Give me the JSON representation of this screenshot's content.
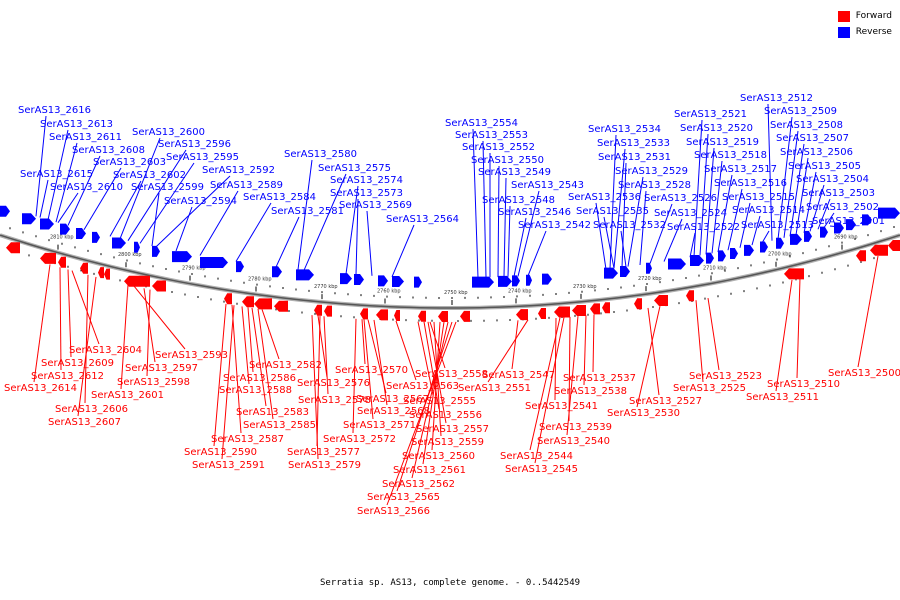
{
  "caption": "Serratia sp. AS13, complete genome. - 0..5442549",
  "legend": [
    {
      "label": "Forward",
      "color": "#ff0000"
    },
    {
      "label": "Reverse",
      "color": "#0000ff"
    }
  ],
  "colors": {
    "forward": "#ff0000",
    "reverse": "#0000ff",
    "backbone": "#808080"
  },
  "tick_labels": [
    "2810 kbp",
    "2800 kbp",
    "2790 kbp",
    "2780 kbp",
    "2770 kbp",
    "2760 kbp",
    "2750 kbp",
    "2740 kbp",
    "2730 kbp",
    "2720 kbp",
    "2710 kbp",
    "2700 kbp",
    "2690 kbp"
  ],
  "reverse_genes": [
    "SerAS13_2616",
    "SerAS13_2613",
    "SerAS13_2611",
    "SerAS13_2608",
    "SerAS13_2603",
    "SerAS13_2615",
    "SerAS13_2610",
    "SerAS13_2602",
    "SerAS13_2600",
    "SerAS13_2596",
    "SerAS13_2595",
    "SerAS13_2592",
    "SerAS13_2599",
    "SerAS13_2594",
    "SerAS13_2589",
    "SerAS13_2584",
    "SerAS13_2581",
    "SerAS13_2580",
    "SerAS13_2575",
    "SerAS13_2574",
    "SerAS13_2573",
    "SerAS13_2569",
    "SerAS13_2564",
    "SerAS13_2554",
    "SerAS13_2553",
    "SerAS13_2552",
    "SerAS13_2550",
    "SerAS13_2549",
    "SerAS13_2543",
    "SerAS13_2548",
    "SerAS13_2546",
    "SerAS13_2542",
    "SerAS13_2534",
    "SerAS13_2533",
    "SerAS13_2531",
    "SerAS13_2529",
    "SerAS13_2528",
    "SerAS13_2536",
    "SerAS13_2526",
    "SerAS13_2535",
    "SerAS13_2524",
    "SerAS13_2532",
    "SerAS13_2522",
    "SerAS13_2521",
    "SerAS13_2520",
    "SerAS13_2519",
    "SerAS13_2518",
    "SerAS13_2517",
    "SerAS13_2516",
    "SerAS13_2515",
    "SerAS13_2514",
    "SerAS13_2513",
    "SerAS13_2512",
    "SerAS13_2509",
    "SerAS13_2508",
    "SerAS13_2507",
    "SerAS13_2506",
    "SerAS13_2505",
    "SerAS13_2504",
    "SerAS13_2503",
    "SerAS13_2502",
    "SerAS13_2501"
  ],
  "forward_genes": [
    "SerAS13_2604",
    "SerAS13_2609",
    "SerAS13_2612",
    "SerAS13_2614",
    "SerAS13_2606",
    "SerAS13_2607",
    "SerAS13_2593",
    "SerAS13_2597",
    "SerAS13_2598",
    "SerAS13_2601",
    "SerAS13_2588",
    "SerAS13_2583",
    "SerAS13_2585",
    "SerAS13_2587",
    "SerAS13_2590",
    "SerAS13_2591",
    "SerAS13_2582",
    "SerAS13_2586",
    "SerAS13_2576",
    "SerAS13_2578",
    "SerAS13_2577",
    "SerAS13_2579",
    "SerAS13_2570",
    "SerAS13_2567",
    "SerAS13_2568",
    "SerAS13_2571",
    "SerAS13_2572",
    "SerAS13_2558",
    "SerAS13_2563",
    "SerAS13_2555",
    "SerAS13_2556",
    "SerAS13_2557",
    "SerAS13_2559",
    "SerAS13_2560",
    "SerAS13_2561",
    "SerAS13_2562",
    "SerAS13_2565",
    "SerAS13_2566",
    "SerAS13_2547",
    "SerAS13_2551",
    "SerAS13_2537",
    "SerAS13_2538",
    "SerAS13_2541",
    "SerAS13_2539",
    "SerAS13_2540",
    "SerAS13_2544",
    "SerAS13_2545",
    "SerAS13_2527",
    "SerAS13_2530",
    "SerAS13_2523",
    "SerAS13_2525",
    "SerAS13_2510",
    "SerAS13_2511",
    "SerAS13_2500"
  ]
}
